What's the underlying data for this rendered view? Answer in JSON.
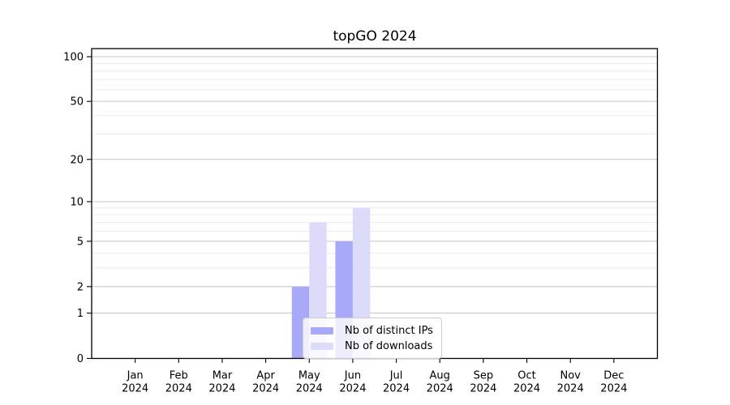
{
  "figure": {
    "title": "topGO 2024"
  },
  "chart_data": {
    "type": "bar",
    "title": "topGO 2024",
    "categories": [
      "Jan",
      "Feb",
      "Mar",
      "Apr",
      "May",
      "Jun",
      "Jul",
      "Aug",
      "Sep",
      "Oct",
      "Nov",
      "Dec"
    ],
    "x_year_label": "2024",
    "series": [
      {
        "name": "Nb of distinct IPs",
        "color": "#a9a9f9",
        "values": [
          0,
          0,
          0,
          0,
          2,
          5,
          0,
          0,
          0,
          0,
          0,
          0
        ]
      },
      {
        "name": "Nb of downloads",
        "color": "#dcdcfa",
        "values": [
          0,
          0,
          0,
          0,
          7,
          9,
          0,
          0,
          0,
          0,
          0,
          0
        ]
      }
    ],
    "y_axis": {
      "scale": "log1p",
      "tick_values": [
        0,
        1,
        2,
        5,
        10,
        20,
        50,
        100
      ],
      "minor_tick_values": [
        3,
        4,
        6,
        7,
        8,
        9,
        30,
        40,
        60,
        70,
        80,
        90
      ],
      "ylim": [
        0,
        113
      ]
    },
    "grid": true,
    "legend_position": "lower center inside",
    "colors": {
      "grid_major": "#c4c4c4",
      "grid_minor": "#ececec",
      "spine": "#000000",
      "text": "#000000",
      "background": "#ffffff",
      "legend_border": "#cccccc"
    }
  }
}
